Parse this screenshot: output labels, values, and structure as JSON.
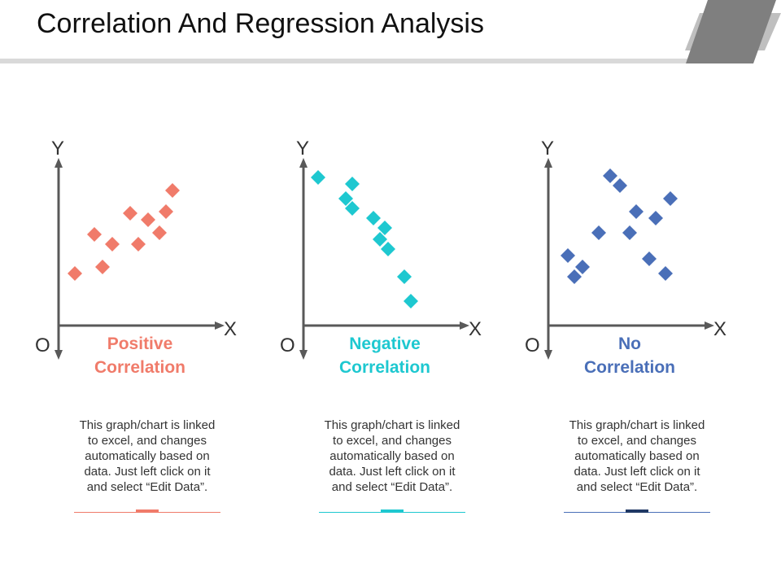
{
  "title": "Correlation And Regression Analysis",
  "colors": {
    "positive": "#f07b6a",
    "negative": "#1ec8d0",
    "none": "#4a6fb8",
    "axis": "#595959",
    "accent_bar": "#7f7f7f",
    "accent_bar_light": "#bfbfbf"
  },
  "chart_data": [
    {
      "type": "scatter",
      "title": "Positive Correlation",
      "title_lines": [
        "Positive",
        "Correlation"
      ],
      "xlabel": "X",
      "ylabel": "Y",
      "origin_label": "O",
      "xlim": [
        0,
        10
      ],
      "ylim": [
        0,
        10
      ],
      "points": [
        {
          "x": 1.0,
          "y": 3.2
        },
        {
          "x": 2.2,
          "y": 5.6
        },
        {
          "x": 2.7,
          "y": 3.6
        },
        {
          "x": 3.3,
          "y": 5.0
        },
        {
          "x": 4.4,
          "y": 6.9
        },
        {
          "x": 4.9,
          "y": 5.0
        },
        {
          "x": 5.5,
          "y": 6.5
        },
        {
          "x": 6.2,
          "y": 5.7
        },
        {
          "x": 6.6,
          "y": 7.0
        },
        {
          "x": 7.0,
          "y": 8.3
        }
      ],
      "description": [
        "This graph/chart is linked",
        "to excel, and changes",
        "automatically based on",
        "data. Just left click on it",
        "and select “Edit Data”."
      ]
    },
    {
      "type": "scatter",
      "title": "Negative Correlation",
      "title_lines": [
        "Negative",
        "Correlation"
      ],
      "xlabel": "X",
      "ylabel": "Y",
      "origin_label": "O",
      "xlim": [
        0,
        10
      ],
      "ylim": [
        0,
        10
      ],
      "points": [
        {
          "x": 0.9,
          "y": 9.1
        },
        {
          "x": 2.6,
          "y": 7.8
        },
        {
          "x": 3.0,
          "y": 8.7
        },
        {
          "x": 3.0,
          "y": 7.2
        },
        {
          "x": 4.3,
          "y": 6.6
        },
        {
          "x": 4.7,
          "y": 5.3
        },
        {
          "x": 5.0,
          "y": 6.0
        },
        {
          "x": 5.2,
          "y": 4.7
        },
        {
          "x": 6.2,
          "y": 3.0
        },
        {
          "x": 6.6,
          "y": 1.5
        }
      ],
      "description": [
        "This graph/chart is linked",
        "to excel, and changes",
        "automatically based on",
        "data. Just left click on it",
        "and select “Edit Data”."
      ]
    },
    {
      "type": "scatter",
      "title": "No Correlation",
      "title_lines": [
        "No",
        "Correlation"
      ],
      "xlabel": "X",
      "ylabel": "Y",
      "origin_label": "O",
      "xlim": [
        0,
        10
      ],
      "ylim": [
        0,
        10
      ],
      "points": [
        {
          "x": 1.2,
          "y": 4.3
        },
        {
          "x": 1.6,
          "y": 3.0
        },
        {
          "x": 2.1,
          "y": 3.6
        },
        {
          "x": 3.1,
          "y": 5.7
        },
        {
          "x": 3.8,
          "y": 9.2
        },
        {
          "x": 4.4,
          "y": 8.6
        },
        {
          "x": 5.0,
          "y": 5.7
        },
        {
          "x": 5.4,
          "y": 7.0
        },
        {
          "x": 6.2,
          "y": 4.1
        },
        {
          "x": 6.6,
          "y": 6.6
        },
        {
          "x": 7.2,
          "y": 3.2
        },
        {
          "x": 7.5,
          "y": 7.8
        }
      ],
      "description": [
        "This graph/chart is linked",
        "to excel, and changes",
        "automatically based on",
        "data. Just left click on it",
        "and select “Edit Data”."
      ]
    }
  ]
}
